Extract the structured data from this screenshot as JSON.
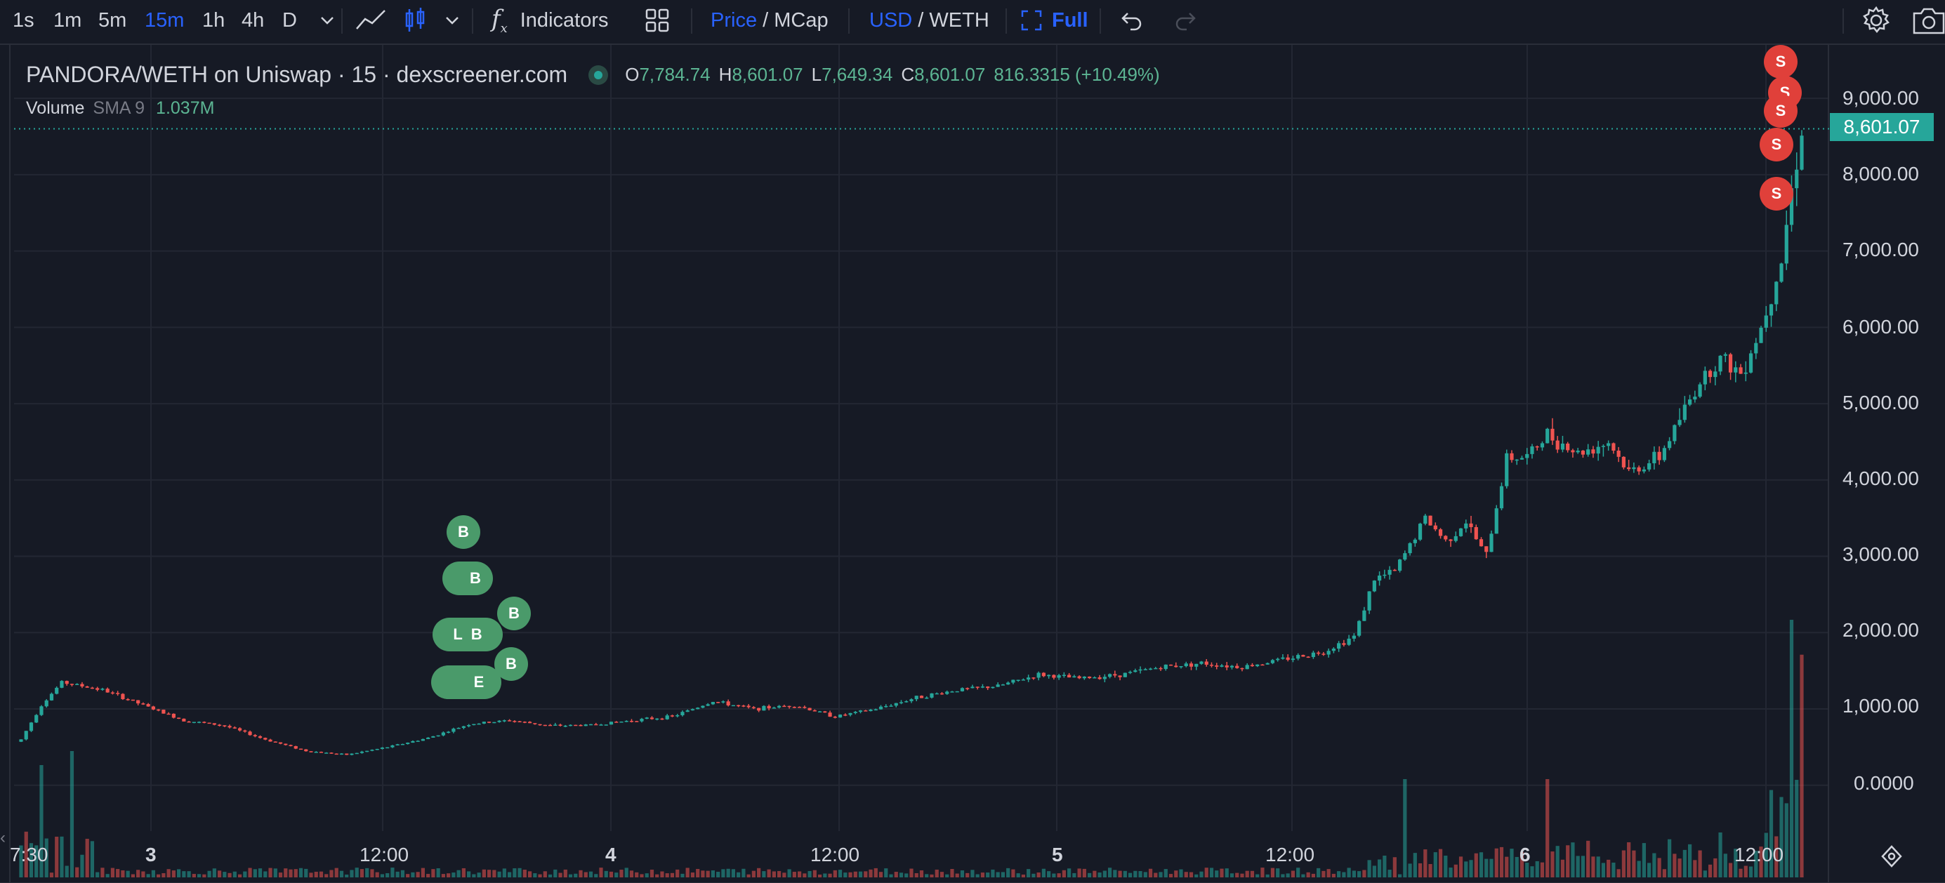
{
  "toolbar": {
    "timeframes": [
      "1s",
      "1m",
      "5m",
      "15m",
      "1h",
      "4h",
      "D"
    ],
    "active_timeframe": "15m",
    "indicators_label": "Indicators",
    "price_label": "Price",
    "price_sep": "/",
    "mcap_label": "MCap",
    "usd_label": "USD",
    "usd_sep": "/",
    "weth_label": "WETH",
    "full_label": "Full"
  },
  "legend": {
    "title": "PANDORA/WETH on Uniswap · 15 · dexscreener.com",
    "open_key": "O",
    "open_value": "7,784.74",
    "high_key": "H",
    "high_value": "8,601.07",
    "low_key": "L",
    "low_value": "7,649.34",
    "close_key": "C",
    "close_value": "8,601.07",
    "change": "816.3315 (+10.49%)",
    "volume_label": "Volume",
    "sma_label": "SMA 9",
    "volume_value": "1.037M"
  },
  "price_axis": [
    "9,000.00",
    "8,000.00",
    "7,000.00",
    "6,000.00",
    "5,000.00",
    "4,000.00",
    "3,000.00",
    "2,000.00",
    "1,000.00",
    "0.0000"
  ],
  "current_price_tag": "8,601.07",
  "time_axis": [
    "7:30",
    "3",
    "12:00",
    "4",
    "12:00",
    "5",
    "12:00",
    "6",
    "12:00"
  ],
  "markers": {
    "buy": "B",
    "sell": "S",
    "pill_l": "L",
    "pill_e": "E"
  },
  "colors": {
    "up": "#26a69a",
    "down": "#ef5350",
    "background": "#161a25",
    "accent": "#2962ff",
    "buy_marker": "#4a9a6a",
    "sell_marker": "#e0403a"
  },
  "chart_data": {
    "type": "candlestick",
    "title": "PANDORA/WETH on Uniswap · 15 · dexscreener.com",
    "y_unit": "USD",
    "ylim": [
      -600,
      9700
    ],
    "x_tick_labels": [
      "7:30",
      "3",
      "12:00",
      "4",
      "12:00",
      "5",
      "12:00",
      "6",
      "12:00"
    ],
    "close_series": [
      {
        "t": 0,
        "close": 600
      },
      {
        "t": 4,
        "close": 1050
      },
      {
        "t": 8,
        "close": 1350
      },
      {
        "t": 16,
        "close": 1250
      },
      {
        "t": 24,
        "close": 1050
      },
      {
        "t": 32,
        "close": 850
      },
      {
        "t": 40,
        "close": 780
      },
      {
        "t": 48,
        "close": 600
      },
      {
        "t": 56,
        "close": 450
      },
      {
        "t": 64,
        "close": 400
      },
      {
        "t": 72,
        "close": 500
      },
      {
        "t": 80,
        "close": 620
      },
      {
        "t": 88,
        "close": 800
      },
      {
        "t": 96,
        "close": 850
      },
      {
        "t": 104,
        "close": 780
      },
      {
        "t": 112,
        "close": 790
      },
      {
        "t": 120,
        "close": 850
      },
      {
        "t": 128,
        "close": 900
      },
      {
        "t": 136,
        "close": 1100
      },
      {
        "t": 144,
        "close": 1000
      },
      {
        "t": 152,
        "close": 1050
      },
      {
        "t": 160,
        "close": 900
      },
      {
        "t": 168,
        "close": 1000
      },
      {
        "t": 176,
        "close": 1150
      },
      {
        "t": 184,
        "close": 1250
      },
      {
        "t": 192,
        "close": 1300
      },
      {
        "t": 200,
        "close": 1450
      },
      {
        "t": 208,
        "close": 1400
      },
      {
        "t": 216,
        "close": 1450
      },
      {
        "t": 224,
        "close": 1550
      },
      {
        "t": 232,
        "close": 1600
      },
      {
        "t": 240,
        "close": 1550
      },
      {
        "t": 248,
        "close": 1650
      },
      {
        "t": 256,
        "close": 1750
      },
      {
        "t": 262,
        "close": 1950
      },
      {
        "t": 266,
        "close": 2700
      },
      {
        "t": 270,
        "close": 2800
      },
      {
        "t": 276,
        "close": 3500
      },
      {
        "t": 280,
        "close": 3200
      },
      {
        "t": 284,
        "close": 3450
      },
      {
        "t": 288,
        "close": 3000
      },
      {
        "t": 292,
        "close": 4300
      },
      {
        "t": 296,
        "close": 4300
      },
      {
        "t": 300,
        "close": 4600
      },
      {
        "t": 306,
        "close": 4350
      },
      {
        "t": 312,
        "close": 4500
      },
      {
        "t": 316,
        "close": 4100
      },
      {
        "t": 322,
        "close": 4300
      },
      {
        "t": 326,
        "close": 4800
      },
      {
        "t": 330,
        "close": 5300
      },
      {
        "t": 334,
        "close": 5600
      },
      {
        "t": 338,
        "close": 5400
      },
      {
        "t": 342,
        "close": 6000
      },
      {
        "t": 346,
        "close": 6900
      },
      {
        "t": 348,
        "close": 7800
      },
      {
        "t": 350,
        "close": 8601
      }
    ],
    "volume_spikes": [
      {
        "t": 4,
        "value_rel": 0.45
      },
      {
        "t": 10,
        "value_rel": 0.55
      },
      {
        "t": 272,
        "value_rel": 0.35
      },
      {
        "t": 300,
        "value_rel": 0.35
      },
      {
        "t": 348,
        "value_rel": 1.0
      },
      {
        "t": 350,
        "value_rel": 0.6
      }
    ],
    "last": {
      "open": 7784.74,
      "high": 8601.07,
      "low": 7649.34,
      "close": 8601.07,
      "change": 816.3315,
      "change_pct": 10.49
    },
    "volume_sma9": "1.037M"
  }
}
